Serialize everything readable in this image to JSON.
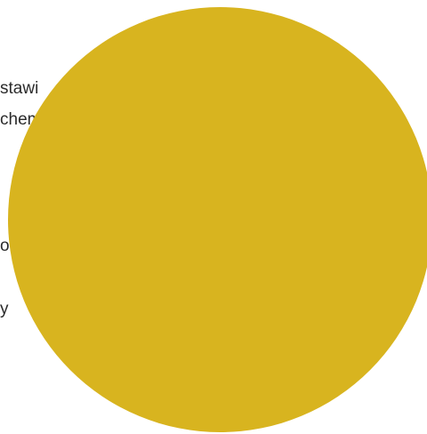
{
  "background_text": {
    "line1": "stawi",
    "line2": "chem",
    "line3": "o",
    "line4": "y"
  },
  "circle": {
    "color": "#d8b41f"
  }
}
